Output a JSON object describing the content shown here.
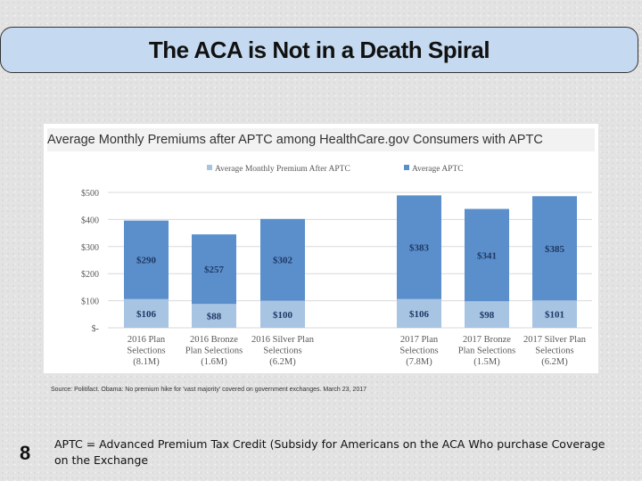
{
  "slide": {
    "title": "The ACA is Not in a Death Spiral",
    "source": "Source: Politifact. Obama: No premium hike for 'vast majority' covered on government exchanges. March 23, 2017",
    "page_number": "8",
    "footnote": "APTC = Advanced Premium Tax Credit (Subsidy for Americans on the ACA Who purchase Coverage on the Exchange"
  },
  "colors": {
    "after_aptc": "#a7c4e3",
    "aptc": "#5b8fcb",
    "label_text": "#1f3864"
  },
  "chart_data": {
    "type": "bar",
    "stacked": true,
    "title": "Average Monthly Premiums after APTC among HealthCare.gov Consumers with APTC",
    "categories": [
      [
        "2016 Plan",
        "Selections",
        "(8.1M)"
      ],
      [
        "2016 Bronze",
        "Plan Selections",
        "(1.6M)"
      ],
      [
        "2016 Silver Plan",
        "Selections",
        "(6.2M)"
      ],
      [
        "2017 Plan",
        "Selections",
        "(7.8M)"
      ],
      [
        "2017 Bronze",
        "Plan Selections",
        "(1.5M)"
      ],
      [
        "2017 Silver Plan",
        "Selections",
        "(6.2M)"
      ]
    ],
    "series": [
      {
        "name": "Average Monthly Premium After APTC",
        "values": [
          106,
          88,
          100,
          106,
          98,
          101
        ],
        "labels": [
          "$106",
          "$88",
          "$100",
          "$106",
          "$98",
          "$101"
        ]
      },
      {
        "name": "Average APTC",
        "values": [
          290,
          257,
          302,
          383,
          341,
          385
        ],
        "labels": [
          "$290",
          "$257",
          "$302",
          "$383",
          "$341",
          "$385"
        ]
      }
    ],
    "y_ticks": [
      0,
      100,
      200,
      300,
      400,
      500
    ],
    "y_tick_labels": [
      "$-",
      "$100",
      "$200",
      "$300",
      "$400",
      "$500"
    ],
    "ylim": [
      0,
      500
    ],
    "legend_position": "top",
    "grid": true
  }
}
